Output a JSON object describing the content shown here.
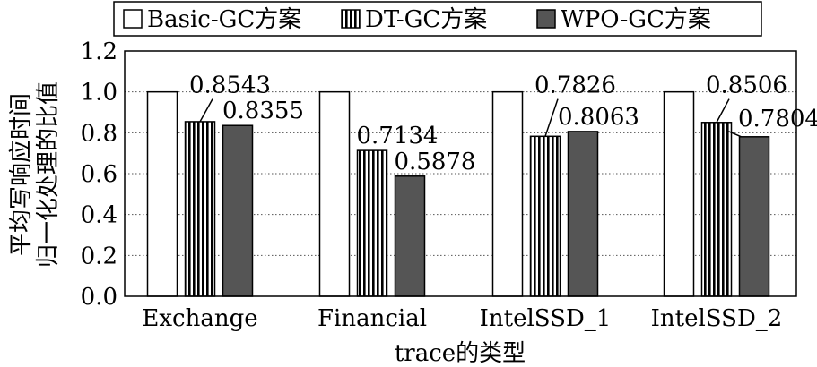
{
  "chart_data": {
    "type": "bar",
    "categories": [
      "Exchange",
      "Financial",
      "IntelSSD_1",
      "IntelSSD_2"
    ],
    "series": [
      {
        "name": "Basic-GC方案",
        "values": [
          1.0,
          1.0,
          1.0,
          1.0
        ],
        "style": "white"
      },
      {
        "name": "DT-GC方案",
        "values": [
          0.8543,
          0.7134,
          0.7826,
          0.8506
        ],
        "style": "vertical-stripes"
      },
      {
        "name": "WPO-GC方案",
        "values": [
          0.8355,
          0.5878,
          0.8063,
          0.7804
        ],
        "style": "dark-gray"
      }
    ],
    "data_labels": {
      "DT-GC方案": [
        "0.8543",
        "0.7134",
        "0.7826",
        "0.8506"
      ],
      "WPO-GC方案": [
        "0.8355",
        "0.5878",
        "0.8063",
        "0.7804"
      ]
    },
    "xlabel": "trace的类型",
    "ylabel_line1": "平均写响应时间",
    "ylabel_line2": "归一化处理的比值",
    "ylim": [
      0,
      1.2
    ],
    "yticks": [
      "0.0",
      "0.2",
      "0.4",
      "0.6",
      "0.8",
      "1.0",
      "1.2"
    ],
    "ytick_values": [
      0,
      0.2,
      0.4,
      0.6,
      0.8,
      1.0,
      1.2
    ],
    "grid": "horizontal-dotted",
    "legend_position": "top",
    "colors": {
      "white": "#ffffff",
      "dark": "#555555",
      "stroke": "#000000"
    }
  }
}
